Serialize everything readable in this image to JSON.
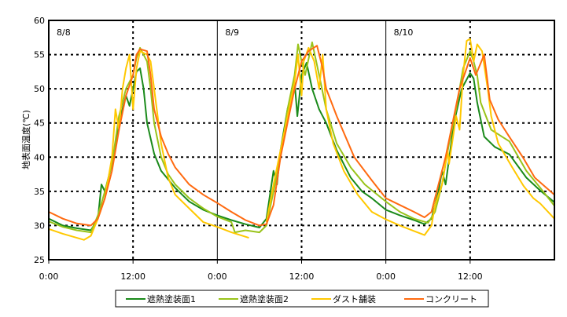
{
  "chart_data": {
    "type": "line",
    "title": "",
    "xlabel": "",
    "ylabel": "地表面温度(℃)",
    "xlim": [
      0,
      72
    ],
    "ylim": [
      25,
      60
    ],
    "x_unit": "hours from 8/8 0:00",
    "yticks": [
      25,
      30,
      35,
      40,
      45,
      50,
      55,
      60
    ],
    "xticks": [
      {
        "h": 0,
        "label": "0:00"
      },
      {
        "h": 12,
        "label": "12:00"
      },
      {
        "h": 24,
        "label": "0:00"
      },
      {
        "h": 36,
        "label": "12:00"
      },
      {
        "h": 48,
        "label": "0:00"
      },
      {
        "h": 60,
        "label": "12:00"
      }
    ],
    "day_labels": [
      {
        "h": 0,
        "label": "8/8"
      },
      {
        "h": 24,
        "label": "8/9"
      },
      {
        "h": 48,
        "label": "8/10"
      }
    ],
    "grid": true,
    "legend_position": "bottom",
    "series": [
      {
        "name": "遮熱塗装面1",
        "color": "#1a8a1a",
        "points": [
          [
            0,
            31
          ],
          [
            2,
            30
          ],
          [
            4,
            29.6
          ],
          [
            6,
            29.3
          ],
          [
            7,
            31
          ],
          [
            7.5,
            36
          ],
          [
            8,
            35
          ],
          [
            9,
            39
          ],
          [
            10,
            45
          ],
          [
            11,
            49
          ],
          [
            11.5,
            47.5
          ],
          [
            12,
            50
          ],
          [
            12.5,
            52.5
          ],
          [
            13,
            53
          ],
          [
            13.5,
            50
          ],
          [
            14,
            45
          ],
          [
            15,
            40.5
          ],
          [
            16,
            38
          ],
          [
            18,
            35.5
          ],
          [
            20,
            33.5
          ],
          [
            22,
            32.3
          ],
          [
            24,
            31.5
          ],
          [
            26,
            30.8
          ],
          [
            28,
            30.2
          ],
          [
            30,
            29.7
          ],
          [
            31,
            31
          ],
          [
            32,
            38
          ],
          [
            32.5,
            36
          ],
          [
            33,
            41
          ],
          [
            34,
            47
          ],
          [
            35,
            51
          ],
          [
            35.4,
            46
          ],
          [
            36,
            52
          ],
          [
            36.7,
            53.8
          ],
          [
            37.5,
            50
          ],
          [
            38.5,
            47
          ],
          [
            39.5,
            45
          ],
          [
            41,
            41
          ],
          [
            43,
            37
          ],
          [
            44.6,
            35
          ],
          [
            46,
            34
          ],
          [
            48,
            32.3
          ],
          [
            50,
            31.5
          ],
          [
            52,
            30.8
          ],
          [
            53.5,
            30.2
          ],
          [
            54.5,
            31
          ],
          [
            55.5,
            35
          ],
          [
            56,
            38
          ],
          [
            56.5,
            36
          ],
          [
            57.7,
            45
          ],
          [
            58.8,
            50
          ],
          [
            60,
            52.3
          ],
          [
            60.5,
            51.5
          ],
          [
            61,
            48
          ],
          [
            62,
            43
          ],
          [
            63.5,
            41.5
          ],
          [
            65.6,
            40.4
          ],
          [
            68,
            37
          ],
          [
            70,
            35.1
          ],
          [
            72,
            33.4
          ]
        ]
      },
      {
        "name": "遮熱塗装面2",
        "color": "#99c31a",
        "points": [
          [
            0,
            30.6
          ],
          [
            2,
            29.8
          ],
          [
            4,
            29.3
          ],
          [
            6,
            29
          ],
          [
            7,
            31.5
          ],
          [
            8,
            35
          ],
          [
            9,
            39
          ],
          [
            10,
            46
          ],
          [
            11,
            50
          ],
          [
            12,
            52
          ],
          [
            12.5,
            54.5
          ],
          [
            13,
            56
          ],
          [
            14,
            54
          ],
          [
            14.5,
            50
          ],
          [
            15,
            45
          ],
          [
            16,
            40
          ],
          [
            17,
            37.5
          ],
          [
            18,
            36
          ],
          [
            20,
            34
          ],
          [
            22,
            32.5
          ],
          [
            24,
            31.3
          ],
          [
            26,
            30.5
          ],
          [
            26.5,
            29
          ],
          [
            28,
            29.3
          ],
          [
            30,
            29
          ],
          [
            31,
            30
          ],
          [
            32,
            35
          ],
          [
            33,
            40
          ],
          [
            34,
            47
          ],
          [
            35,
            52
          ],
          [
            35.5,
            56.5
          ],
          [
            36,
            54
          ],
          [
            36.5,
            52
          ],
          [
            37.5,
            56.8
          ],
          [
            38.5,
            52
          ],
          [
            39.5,
            47
          ],
          [
            41,
            42
          ],
          [
            43,
            38.5
          ],
          [
            45,
            36
          ],
          [
            48,
            33.5
          ],
          [
            50,
            32
          ],
          [
            52,
            31
          ],
          [
            54,
            30.4
          ],
          [
            55,
            32
          ],
          [
            56,
            36
          ],
          [
            57,
            42
          ],
          [
            58,
            47
          ],
          [
            59,
            53
          ],
          [
            60,
            55.5
          ],
          [
            60.5,
            54
          ],
          [
            61,
            52
          ],
          [
            61.5,
            48
          ],
          [
            63,
            44
          ],
          [
            65.6,
            42.3
          ],
          [
            68,
            38
          ],
          [
            70,
            35.5
          ],
          [
            72,
            32.9
          ]
        ]
      },
      {
        "name": "ダスト舗装",
        "color": "#ffc800",
        "points": [
          [
            0,
            29.5
          ],
          [
            2,
            28.8
          ],
          [
            4,
            28.2
          ],
          [
            5,
            27.9
          ],
          [
            6,
            28.5
          ],
          [
            7,
            31
          ],
          [
            8,
            34
          ],
          [
            9,
            40
          ],
          [
            9.5,
            47
          ],
          [
            10,
            44
          ],
          [
            10.5,
            50
          ],
          [
            11,
            53
          ],
          [
            11.5,
            55
          ],
          [
            12,
            47
          ],
          [
            12.5,
            53
          ],
          [
            13,
            55.5
          ],
          [
            14,
            55
          ],
          [
            14.5,
            54
          ],
          [
            15,
            50
          ],
          [
            16,
            42
          ],
          [
            17,
            37
          ],
          [
            18,
            34.5
          ],
          [
            20,
            32.5
          ],
          [
            22,
            30.5
          ],
          [
            24,
            29.8
          ],
          [
            26,
            29
          ],
          [
            28.5,
            28.2
          ],
          null,
          [
            31,
            30.5
          ],
          [
            32,
            36
          ],
          [
            33,
            41
          ],
          [
            34,
            46
          ],
          [
            35,
            51
          ],
          [
            35.5,
            55
          ],
          [
            36,
            49
          ],
          [
            36.3,
            54
          ],
          [
            37,
            56
          ],
          [
            37.8,
            54
          ],
          [
            38.5,
            50
          ],
          [
            39,
            55
          ],
          [
            39.5,
            47
          ],
          [
            40.5,
            42
          ],
          [
            42,
            38
          ],
          [
            44,
            34.5
          ],
          [
            46,
            32
          ],
          [
            48,
            30.9
          ],
          [
            50,
            30
          ],
          [
            52,
            29.2
          ],
          [
            53.5,
            28.6
          ],
          [
            54.5,
            30
          ],
          [
            55,
            33
          ],
          [
            56,
            36
          ],
          [
            56.8,
            41
          ],
          [
            57,
            39
          ],
          [
            58,
            46
          ],
          [
            58.5,
            44
          ],
          [
            59,
            52
          ],
          [
            59.5,
            57
          ],
          [
            60,
            57.3
          ],
          [
            60.5,
            54
          ],
          [
            61,
            56.5
          ],
          [
            61.7,
            55.5
          ],
          [
            62.5,
            50
          ],
          [
            63,
            46
          ],
          [
            64,
            42
          ],
          [
            66,
            38.5
          ],
          [
            67.6,
            35.8
          ],
          [
            69,
            34
          ],
          [
            70,
            33.2
          ],
          [
            72,
            31
          ]
        ]
      },
      {
        "name": "コンクリート",
        "color": "#ff6a10",
        "points": [
          [
            0,
            32
          ],
          [
            2,
            31
          ],
          [
            4,
            30.3
          ],
          [
            6,
            30
          ],
          [
            7,
            31
          ],
          [
            8,
            34
          ],
          [
            9,
            38
          ],
          [
            10,
            44
          ],
          [
            11,
            49
          ],
          [
            12,
            52
          ],
          [
            12.5,
            55
          ],
          [
            13,
            55.8
          ],
          [
            14,
            55.5
          ],
          [
            14.5,
            52
          ],
          [
            15,
            47
          ],
          [
            16,
            43
          ],
          [
            17,
            40.5
          ],
          [
            18,
            38.5
          ],
          [
            20,
            36
          ],
          [
            22,
            34.5
          ],
          [
            24,
            33.3
          ],
          [
            26,
            32
          ],
          [
            28,
            30.8
          ],
          [
            30,
            30
          ],
          [
            31,
            30.2
          ],
          [
            32,
            33
          ],
          [
            33,
            40
          ],
          [
            34,
            45
          ],
          [
            35,
            50
          ],
          [
            36,
            54
          ],
          [
            37,
            55.5
          ],
          [
            38.2,
            56.3
          ],
          [
            39,
            53
          ],
          [
            39.5,
            50
          ],
          [
            41,
            46
          ],
          [
            43.5,
            40
          ],
          [
            46,
            36.6
          ],
          [
            48,
            34
          ],
          [
            50,
            33
          ],
          [
            52,
            32
          ],
          [
            53.5,
            31.2
          ],
          [
            54.5,
            32
          ],
          [
            55.5,
            36
          ],
          [
            56.5,
            40
          ],
          [
            57.5,
            45
          ],
          [
            58.5,
            50
          ],
          [
            59.5,
            53
          ],
          [
            60,
            54.5
          ],
          [
            60.8,
            52
          ],
          [
            62,
            55
          ],
          [
            62.8,
            48.4
          ],
          [
            64,
            45.5
          ],
          [
            65.5,
            43.1
          ],
          [
            67.5,
            40
          ],
          [
            69.2,
            37
          ],
          [
            72,
            34.5
          ]
        ]
      }
    ]
  }
}
